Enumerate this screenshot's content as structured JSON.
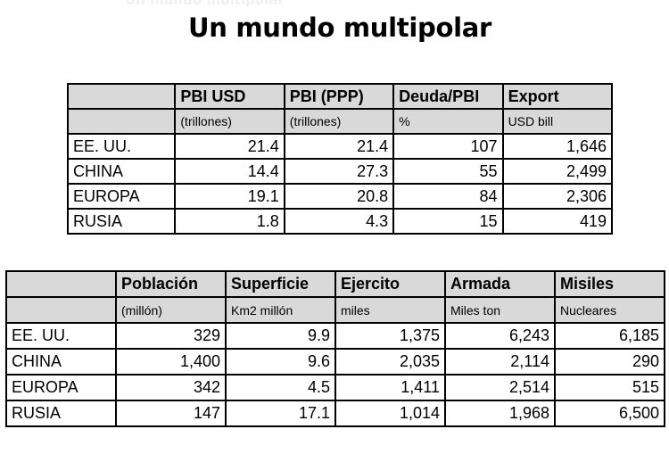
{
  "ghost_text": "Un mundo multipolar",
  "title": "Un mundo multipolar",
  "table1": {
    "headers": [
      "",
      "PBI USD",
      "PBI (PPP)",
      "Deuda/PBI",
      "Export"
    ],
    "units": [
      "",
      "(trillones)",
      "(trillones)",
      "%",
      "USD bill"
    ],
    "rows": [
      [
        "EE. UU.",
        "21.4",
        "21.4",
        "107",
        "1,646"
      ],
      [
        "CHINA",
        "14.4",
        "27.3",
        "55",
        "2,499"
      ],
      [
        "EUROPA",
        "19.1",
        "20.8",
        "84",
        "2,306"
      ],
      [
        "RUSIA",
        "1.8",
        "4.3",
        "15",
        "419"
      ]
    ]
  },
  "table2": {
    "headers": [
      "",
      "Población",
      "Superficie",
      "Ejercito",
      "Armada",
      "Misiles"
    ],
    "units": [
      "",
      "(millón)",
      "Km2 millón",
      "miles",
      "Miles ton",
      "Nucleares"
    ],
    "rows": [
      [
        "EE. UU.",
        "329",
        "9.9",
        "1,375",
        "6,243",
        "6,185"
      ],
      [
        "CHINA",
        "1,400",
        "9.6",
        "2,035",
        "2,114",
        "290"
      ],
      [
        "EUROPA",
        "342",
        "4.5",
        "1,411",
        "2,514",
        "515"
      ],
      [
        "RUSIA",
        "147",
        "17.1",
        "1,014",
        "1,968",
        "6,500"
      ]
    ]
  }
}
